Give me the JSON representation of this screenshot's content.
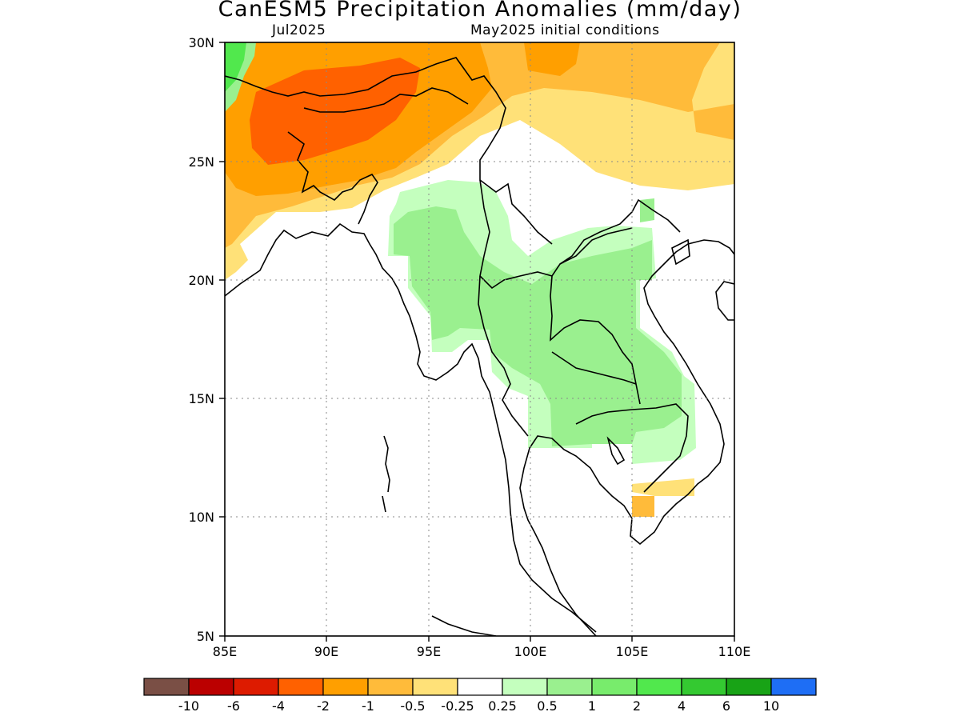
{
  "title": "CanESM5 Precipitation Anomalies (mm/day)",
  "subtitle_left": "Jul2025",
  "subtitle_right": "May2025 initial conditions",
  "map": {
    "lon_range": [
      85,
      110
    ],
    "lat_range": [
      5,
      30
    ],
    "lon_ticks": [
      "85E",
      "90E",
      "95E",
      "100E",
      "105E",
      "110E"
    ],
    "lat_ticks": [
      "5N",
      "10N",
      "15N",
      "20N",
      "25N",
      "30N"
    ],
    "grid": "dotted"
  },
  "colorbar": {
    "colors": [
      "#7a4f45",
      "#bb0000",
      "#dd1b00",
      "#ff6100",
      "#ff9f00",
      "#ffbb3a",
      "#ffe178",
      "#ffffff",
      "#c4ffbe",
      "#9af08f",
      "#78ec6c",
      "#51e84d",
      "#34c931",
      "#18a316",
      "#1e6ef5"
    ],
    "labels": [
      "-10",
      "-6",
      "-4",
      "-2",
      "-1",
      "-0.5",
      "-0.25",
      "0.25",
      "0.5",
      "1",
      "2",
      "4",
      "6",
      "10"
    ]
  }
}
